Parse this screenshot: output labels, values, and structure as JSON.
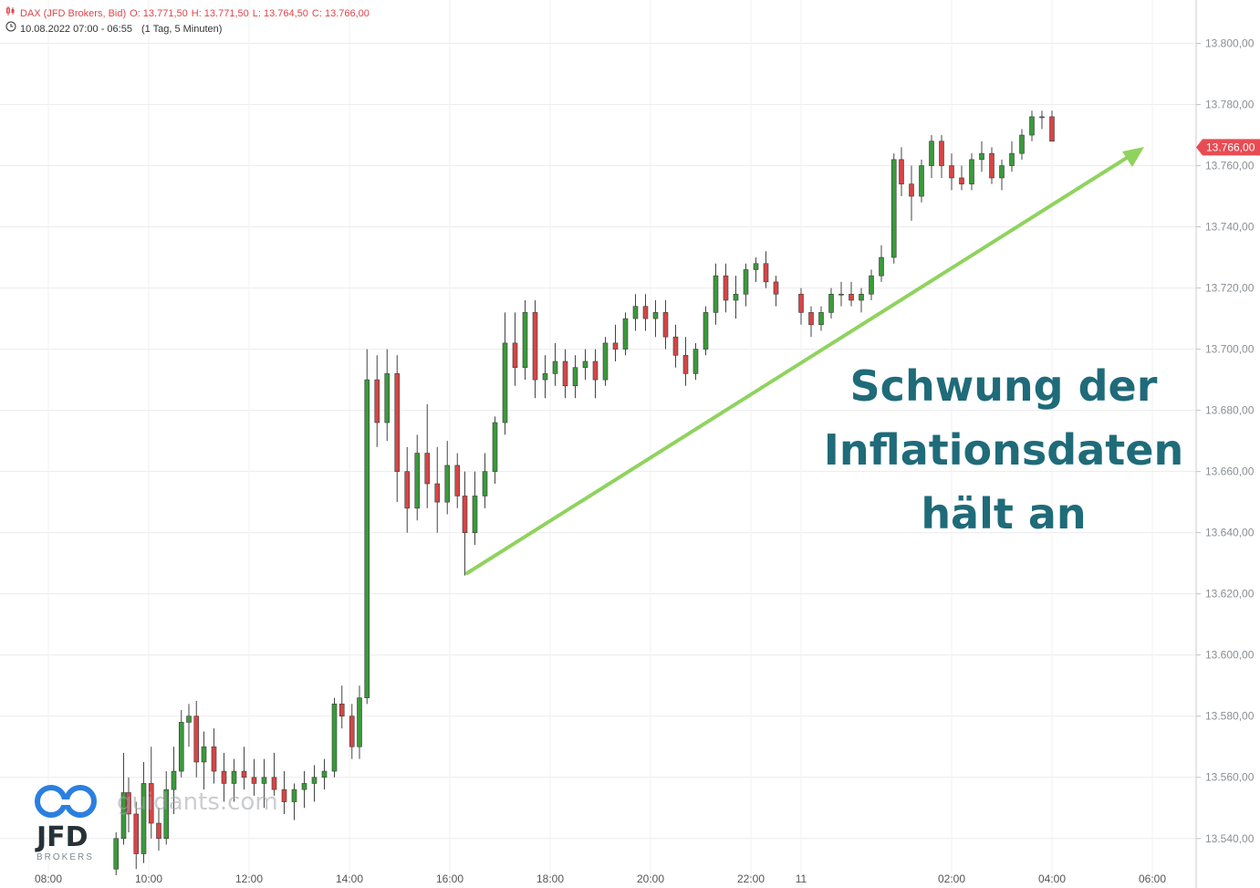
{
  "header": {
    "instrument_line": "DAX (JFD Brokers, Bid)",
    "open": "O: 13.771,50",
    "high": "H: 13.771,50",
    "low": "L: 13.764,50",
    "close": "C: 13.766,00",
    "range_line": "10.08.2022 07:00 - 06:55",
    "interval": "(1 Tag, 5 Minuten)"
  },
  "headline": [
    "Schwung der",
    "Inflationsdaten",
    "hält an"
  ],
  "watermark": "guidants.com",
  "logo": {
    "brand": "JFD",
    "sub": "BROKERS"
  },
  "current_price": {
    "label": "13.766,00",
    "value": 13766
  },
  "colors": {
    "up": "#3a9a3a",
    "down": "#d64545",
    "arrow": "#8fd35e",
    "headline": "#1f6b79",
    "price_tag": "#e84c53"
  },
  "chart_data": {
    "type": "candlestick",
    "title": "",
    "xlabel": "",
    "ylabel": "",
    "ylim": [
      13530,
      13810
    ],
    "y_ticks": [
      13540,
      13560,
      13580,
      13600,
      13620,
      13640,
      13660,
      13680,
      13700,
      13720,
      13740,
      13760,
      13780,
      13800
    ],
    "y_tick_labels": [
      "13.540,00",
      "13.560,00",
      "13.580,00",
      "13.600,00",
      "13.620,00",
      "13.640,00",
      "13.660,00",
      "13.680,00",
      "13.700,00",
      "13.720,00",
      "13.740,00",
      "13.760,00",
      "13.780,00",
      "13.800,00"
    ],
    "x_ticks": [
      "08:00",
      "10:00",
      "12:00",
      "14:00",
      "16:00",
      "18:00",
      "20:00",
      "22:00",
      "11",
      "02:00",
      "04:00",
      "06:00"
    ],
    "x_tick_hours": [
      8,
      10,
      12,
      14,
      16,
      18,
      20,
      22,
      23,
      26,
      28,
      30
    ],
    "xlim_hours": [
      7.7,
      31.75
    ],
    "grid": true,
    "candles": [
      [
        9.35,
        13530,
        13542,
        13528,
        13540
      ],
      [
        9.5,
        13540,
        13568,
        13538,
        13555
      ],
      [
        9.6,
        13555,
        13560,
        13542,
        13548
      ],
      [
        9.75,
        13548,
        13552,
        13530,
        13535
      ],
      [
        9.9,
        13535,
        13565,
        13532,
        13558
      ],
      [
        10.05,
        13558,
        13570,
        13540,
        13545
      ],
      [
        10.2,
        13545,
        13550,
        13536,
        13540
      ],
      [
        10.35,
        13540,
        13562,
        13538,
        13556
      ],
      [
        10.5,
        13556,
        13570,
        13548,
        13562
      ],
      [
        10.65,
        13562,
        13582,
        13560,
        13578
      ],
      [
        10.8,
        13578,
        13584,
        13570,
        13580
      ],
      [
        10.95,
        13580,
        13585,
        13560,
        13565
      ],
      [
        11.1,
        13565,
        13575,
        13556,
        13570
      ],
      [
        11.3,
        13570,
        13576,
        13558,
        13562
      ],
      [
        11.5,
        13562,
        13568,
        13552,
        13558
      ],
      [
        11.7,
        13558,
        13566,
        13552,
        13562
      ],
      [
        11.9,
        13562,
        13570,
        13556,
        13560
      ],
      [
        12.1,
        13560,
        13566,
        13554,
        13558
      ],
      [
        12.3,
        13558,
        13566,
        13550,
        13560
      ],
      [
        12.5,
        13560,
        13568,
        13554,
        13556
      ],
      [
        12.7,
        13556,
        13562,
        13548,
        13552
      ],
      [
        12.9,
        13552,
        13558,
        13546,
        13556
      ],
      [
        13.1,
        13556,
        13562,
        13550,
        13558
      ],
      [
        13.3,
        13558,
        13564,
        13552,
        13560
      ],
      [
        13.5,
        13560,
        13566,
        13556,
        13562
      ],
      [
        13.7,
        13562,
        13586,
        13560,
        13584
      ],
      [
        13.85,
        13584,
        13590,
        13576,
        13580
      ],
      [
        14.05,
        13580,
        13584,
        13566,
        13570
      ],
      [
        14.2,
        13570,
        13590,
        13566,
        13586
      ],
      [
        14.35,
        13586,
        13700,
        13584,
        13690
      ],
      [
        14.55,
        13690,
        13698,
        13668,
        13676
      ],
      [
        14.75,
        13676,
        13700,
        13670,
        13692
      ],
      [
        14.95,
        13692,
        13698,
        13650,
        13660
      ],
      [
        15.15,
        13660,
        13668,
        13640,
        13648
      ],
      [
        15.35,
        13648,
        13672,
        13644,
        13666
      ],
      [
        15.55,
        13666,
        13682,
        13648,
        13656
      ],
      [
        15.75,
        13656,
        13668,
        13640,
        13650
      ],
      [
        15.95,
        13650,
        13670,
        13646,
        13662
      ],
      [
        16.15,
        13662,
        13666,
        13648,
        13652
      ],
      [
        16.3,
        13652,
        13660,
        13626,
        13640
      ],
      [
        16.5,
        13640,
        13660,
        13636,
        13652
      ],
      [
        16.7,
        13652,
        13666,
        13648,
        13660
      ],
      [
        16.9,
        13660,
        13678,
        13656,
        13676
      ],
      [
        17.1,
        13676,
        13712,
        13672,
        13702
      ],
      [
        17.3,
        13702,
        13712,
        13688,
        13694
      ],
      [
        17.5,
        13694,
        13716,
        13690,
        13712
      ],
      [
        17.7,
        13712,
        13716,
        13684,
        13690
      ],
      [
        17.9,
        13690,
        13698,
        13684,
        13692
      ],
      [
        18.1,
        13692,
        13702,
        13688,
        13696
      ],
      [
        18.3,
        13696,
        13700,
        13684,
        13688
      ],
      [
        18.5,
        13688,
        13698,
        13684,
        13694
      ],
      [
        18.7,
        13694,
        13700,
        13690,
        13696
      ],
      [
        18.9,
        13696,
        13700,
        13684,
        13690
      ],
      [
        19.1,
        13690,
        13704,
        13688,
        13702
      ],
      [
        19.3,
        13702,
        13708,
        13696,
        13700
      ],
      [
        19.5,
        13700,
        13712,
        13698,
        13710
      ],
      [
        19.7,
        13710,
        13718,
        13706,
        13714
      ],
      [
        19.9,
        13714,
        13718,
        13706,
        13710
      ],
      [
        20.1,
        13710,
        13716,
        13704,
        13712
      ],
      [
        20.3,
        13712,
        13716,
        13700,
        13704
      ],
      [
        20.5,
        13704,
        13708,
        13694,
        13698
      ],
      [
        20.7,
        13698,
        13704,
        13688,
        13692
      ],
      [
        20.9,
        13692,
        13702,
        13690,
        13700
      ],
      [
        21.1,
        13700,
        13714,
        13698,
        13712
      ],
      [
        21.3,
        13712,
        13728,
        13708,
        13724
      ],
      [
        21.5,
        13724,
        13728,
        13712,
        13716
      ],
      [
        21.7,
        13716,
        13724,
        13710,
        13718
      ],
      [
        21.9,
        13718,
        13728,
        13714,
        13726
      ],
      [
        22.1,
        13726,
        13730,
        13722,
        13728
      ],
      [
        22.3,
        13728,
        13732,
        13720,
        13722
      ],
      [
        22.5,
        13722,
        13724,
        13714,
        13718
      ],
      [
        23.0,
        13718,
        13720,
        13708,
        13712
      ],
      [
        23.2,
        13712,
        13714,
        13704,
        13708
      ],
      [
        23.4,
        13708,
        13714,
        13706,
        13712
      ],
      [
        23.6,
        13712,
        13720,
        13710,
        13718
      ],
      [
        23.8,
        13718,
        13722,
        13714,
        13718
      ],
      [
        24.0,
        13718,
        13722,
        13714,
        13716
      ],
      [
        24.2,
        13716,
        13720,
        13712,
        13718
      ],
      [
        24.4,
        13718,
        13726,
        13716,
        13724
      ],
      [
        24.6,
        13724,
        13734,
        13722,
        13730
      ],
      [
        24.85,
        13730,
        13764,
        13728,
        13762
      ],
      [
        25.0,
        13762,
        13766,
        13750,
        13754
      ],
      [
        25.2,
        13754,
        13760,
        13742,
        13750
      ],
      [
        25.4,
        13750,
        13762,
        13748,
        13760
      ],
      [
        25.6,
        13760,
        13770,
        13756,
        13768
      ],
      [
        25.8,
        13768,
        13770,
        13756,
        13760
      ],
      [
        26.0,
        13760,
        13764,
        13752,
        13756
      ],
      [
        26.2,
        13756,
        13760,
        13752,
        13754
      ],
      [
        26.4,
        13754,
        13764,
        13752,
        13762
      ],
      [
        26.6,
        13762,
        13768,
        13758,
        13764
      ],
      [
        26.8,
        13764,
        13766,
        13754,
        13756
      ],
      [
        27.0,
        13756,
        13762,
        13752,
        13760
      ],
      [
        27.2,
        13760,
        13768,
        13758,
        13764
      ],
      [
        27.4,
        13764,
        13772,
        13762,
        13770
      ],
      [
        27.6,
        13770,
        13778,
        13768,
        13776
      ],
      [
        27.8,
        13776,
        13778,
        13772,
        13776
      ],
      [
        28.0,
        13776,
        13778,
        13768,
        13768
      ]
    ]
  }
}
